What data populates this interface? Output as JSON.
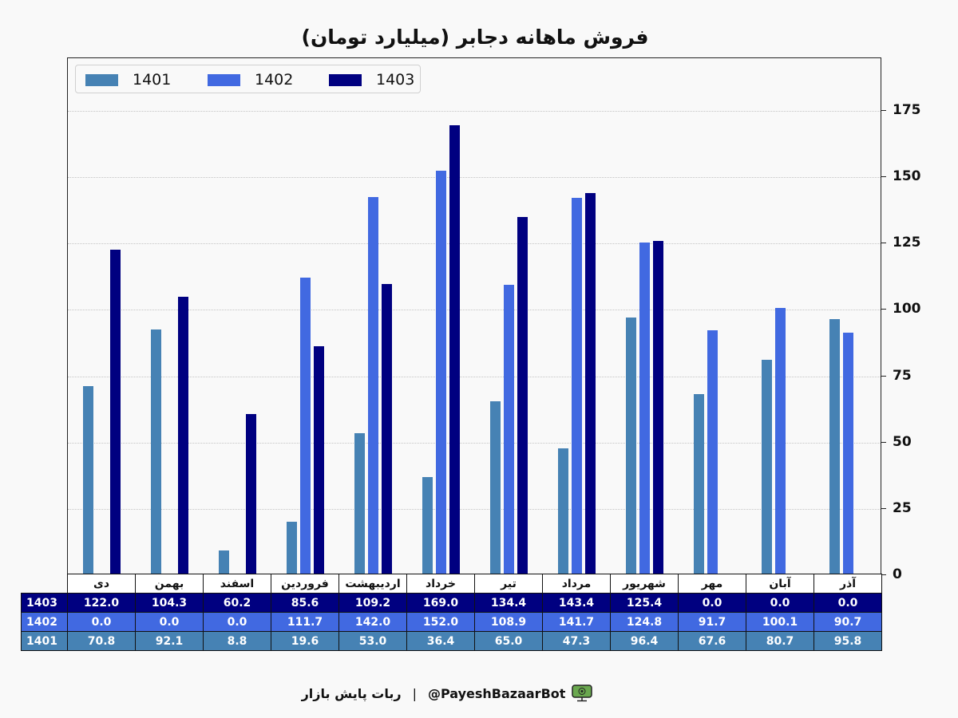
{
  "title": "فروش ماهانه دجابر (میلیارد تومان)",
  "legend": [
    {
      "label": "1401",
      "color": "#4682b4"
    },
    {
      "label": "1402",
      "color": "#4169e1"
    },
    {
      "label": "1403",
      "color": "#000080"
    }
  ],
  "y_ticks": [
    "0",
    "25",
    "50",
    "75",
    "100",
    "125",
    "150",
    "175"
  ],
  "table": {
    "months": [
      "دی",
      "بهمن",
      "اسفند",
      "فروردین",
      "اردیبهشت",
      "خرداد",
      "تیر",
      "مرداد",
      "شهریور",
      "مهر",
      "آبان",
      "آذر"
    ],
    "rows": [
      {
        "label": "1403",
        "values": [
          "122.0",
          "104.3",
          "60.2",
          "85.6",
          "109.2",
          "169.0",
          "134.4",
          "143.4",
          "125.4",
          "0.0",
          "0.0",
          "0.0"
        ]
      },
      {
        "label": "1402",
        "values": [
          "0.0",
          "0.0",
          "0.0",
          "111.7",
          "142.0",
          "152.0",
          "108.9",
          "141.7",
          "124.8",
          "91.7",
          "100.1",
          "90.7"
        ]
      },
      {
        "label": "1401",
        "values": [
          "70.8",
          "92.1",
          "8.8",
          "19.6",
          "53.0",
          "36.4",
          "65.0",
          "47.3",
          "96.4",
          "67.6",
          "80.7",
          "95.8"
        ]
      }
    ]
  },
  "footer": {
    "brand": "ربات پایش بازار",
    "separator": "|",
    "handle": "@PayeshBazaarBot",
    "icon": "monitor-icon"
  },
  "chart_data": {
    "type": "bar",
    "title": "فروش ماهانه دجابر (میلیارد تومان)",
    "xlabel": "",
    "ylabel": "",
    "ylim": [
      0,
      195
    ],
    "yticks": [
      0,
      25,
      50,
      75,
      100,
      125,
      150,
      175
    ],
    "grid": "horizontal dotted",
    "legend_position": "upper left",
    "y_axis_side": "right",
    "categories": [
      "دی",
      "بهمن",
      "اسفند",
      "فروردین",
      "اردیبهشت",
      "خرداد",
      "تیر",
      "مرداد",
      "شهریور",
      "مهر",
      "آبان",
      "آذر"
    ],
    "series": [
      {
        "name": "1401",
        "color": "#4682b4",
        "values": [
          70.8,
          92.1,
          8.8,
          19.6,
          53.0,
          36.4,
          65.0,
          47.3,
          96.4,
          67.6,
          80.7,
          95.8
        ]
      },
      {
        "name": "1402",
        "color": "#4169e1",
        "values": [
          0.0,
          0.0,
          0.0,
          111.7,
          142.0,
          152.0,
          108.9,
          141.7,
          124.8,
          91.7,
          100.1,
          90.7
        ]
      },
      {
        "name": "1403",
        "color": "#000080",
        "values": [
          122.0,
          104.3,
          60.2,
          85.6,
          109.2,
          169.0,
          134.4,
          143.4,
          125.4,
          0.0,
          0.0,
          0.0
        ]
      }
    ]
  }
}
